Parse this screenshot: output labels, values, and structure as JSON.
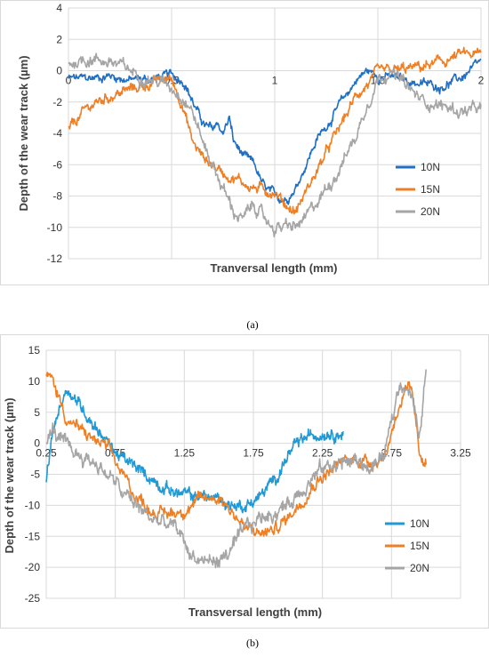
{
  "chart_data": [
    {
      "type": "line",
      "panel_label": "(a)",
      "xlabel": "Tranversal length (mm)",
      "ylabel": "Depth of the wear track (µm)",
      "xlim": [
        0,
        2
      ],
      "ylim": [
        -12,
        4
      ],
      "x_ticks": [
        0,
        0.5,
        1,
        1.5,
        2
      ],
      "x_tick_labels": [
        "0",
        "0.5",
        "1",
        "1.5",
        "2"
      ],
      "y_ticks": [
        4,
        2,
        0,
        -2,
        -4,
        -6,
        -8,
        -10,
        -12
      ],
      "y_tick_labels": [
        "4",
        "2",
        "0",
        "-2",
        "-4",
        "-6",
        "-8",
        "-10",
        "-12"
      ],
      "legend_position": "right",
      "grid": true,
      "series": [
        {
          "name": "10N",
          "color": "#1f6fc5",
          "noise": 0.25,
          "x": [
            0,
            0.1,
            0.2,
            0.3,
            0.4,
            0.5,
            0.56,
            0.62,
            0.66,
            0.7,
            0.72,
            0.75,
            0.78,
            0.8,
            0.85,
            0.9,
            0.95,
            1.0,
            1.05,
            1.1,
            1.15,
            1.2,
            1.3,
            1.4,
            1.45,
            1.5,
            1.6,
            1.7,
            1.8,
            1.9,
            2.0
          ],
          "y": [
            -0.5,
            -0.5,
            -0.3,
            -0.6,
            -0.5,
            -0.3,
            -0.6,
            -2.5,
            -3.5,
            -3.8,
            -3.3,
            -4.0,
            -3.0,
            -4.5,
            -5.5,
            -6.0,
            -7.5,
            -8.0,
            -8.2,
            -7.5,
            -6.0,
            -4.5,
            -2.5,
            -0.5,
            0.0,
            -0.3,
            -0.5,
            -0.8,
            -1.0,
            -0.5,
            0.5
          ]
        },
        {
          "name": "15N",
          "color": "#f07f24",
          "noise": 0.3,
          "x": [
            0,
            0.05,
            0.1,
            0.2,
            0.3,
            0.4,
            0.5,
            0.55,
            0.6,
            0.65,
            0.7,
            0.75,
            0.8,
            0.9,
            1.0,
            1.05,
            1.1,
            1.2,
            1.3,
            1.4,
            1.5,
            1.6,
            1.7,
            1.8,
            1.9,
            2.0
          ],
          "y": [
            -3.8,
            -3.0,
            -2.3,
            -1.6,
            -1.2,
            -0.8,
            -0.5,
            -2.0,
            -4.5,
            -5.5,
            -6.0,
            -6.5,
            -6.8,
            -7.5,
            -7.7,
            -8.5,
            -9.0,
            -6.5,
            -4.0,
            -1.5,
            -0.2,
            0.0,
            0.2,
            0.5,
            1.0,
            1.0
          ]
        },
        {
          "name": "20N",
          "color": "#a5a5a5",
          "noise": 0.35,
          "x": [
            0,
            0.1,
            0.2,
            0.3,
            0.4,
            0.5,
            0.55,
            0.6,
            0.65,
            0.7,
            0.75,
            0.8,
            0.85,
            0.9,
            0.95,
            1.0,
            1.1,
            1.15,
            1.2,
            1.3,
            1.4,
            1.45,
            1.5,
            1.55,
            1.6,
            1.7,
            1.8,
            1.9,
            2.0
          ],
          "y": [
            0.5,
            0.8,
            0.6,
            0.0,
            -0.5,
            -1.0,
            -1.5,
            -2.5,
            -4.5,
            -6.0,
            -7.5,
            -9.0,
            -9.5,
            -8.5,
            -9.5,
            -10.0,
            -10.0,
            -9.5,
            -8.5,
            -6.5,
            -4.0,
            -2.0,
            -0.5,
            0.0,
            -0.5,
            -1.8,
            -2.2,
            -2.6,
            -2.5
          ]
        }
      ]
    },
    {
      "type": "line",
      "panel_label": "(b)",
      "xlabel": "Transversal length (mm)",
      "ylabel": "Depth of the wear track (µm)",
      "xlim": [
        0.25,
        3.25
      ],
      "ylim": [
        -25,
        15
      ],
      "x_ticks": [
        0.25,
        0.75,
        1.25,
        1.75,
        2.25,
        2.75,
        3.25
      ],
      "x_tick_labels": [
        "0.25",
        "0.75",
        "1.25",
        "1.75",
        "2.25",
        "2.75",
        "3.25"
      ],
      "y_ticks": [
        15,
        10,
        5,
        0,
        -5,
        -10,
        -15,
        -20,
        -25
      ],
      "y_tick_labels": [
        "15",
        "10",
        "5",
        "0",
        "-5",
        "-10",
        "-15",
        "-20",
        "-25"
      ],
      "legend_position": "right",
      "grid": true,
      "series": [
        {
          "name": "10N",
          "color": "#1f9ad6",
          "noise": 0.8,
          "x": [
            0.25,
            0.3,
            0.35,
            0.4,
            0.5,
            0.6,
            0.7,
            0.8,
            0.9,
            1.0,
            1.1,
            1.2,
            1.3,
            1.4,
            1.5,
            1.6,
            1.7,
            1.8,
            1.9,
            2.0,
            2.1,
            2.2,
            2.3,
            2.4
          ],
          "y": [
            -6.0,
            2.0,
            6.0,
            9.0,
            6.0,
            3.0,
            0.0,
            -2.5,
            -4.0,
            -5.5,
            -7.0,
            -8.0,
            -8.5,
            -8.5,
            -9.0,
            -10.0,
            -10.0,
            -8.5,
            -6.0,
            -2.0,
            0.5,
            1.5,
            2.0,
            1.5
          ]
        },
        {
          "name": "15N",
          "color": "#f07f24",
          "noise": 0.9,
          "x": [
            0.25,
            0.3,
            0.4,
            0.5,
            0.6,
            0.7,
            0.8,
            0.9,
            1.0,
            1.1,
            1.2,
            1.3,
            1.4,
            1.5,
            1.6,
            1.7,
            1.8,
            1.9,
            2.0,
            2.1,
            2.2,
            2.3,
            2.4,
            2.5,
            2.6,
            2.7,
            2.72,
            2.75,
            2.8,
            2.85,
            2.9,
            2.95,
            3.0
          ],
          "y": [
            11.0,
            10.0,
            4.0,
            2.0,
            0.5,
            -1.0,
            -5.0,
            -8.5,
            -10.5,
            -11.5,
            -11.0,
            -10.0,
            -9.0,
            -8.5,
            -11.0,
            -14.0,
            -14.5,
            -14.0,
            -12.0,
            -9.0,
            -6.0,
            -4.5,
            -3.0,
            -2.5,
            -3.0,
            -2.0,
            -1.0,
            2.0,
            6.0,
            8.0,
            8.0,
            -2.0,
            -2.5
          ]
        },
        {
          "name": "20N",
          "color": "#a5a5a5",
          "noise": 1.1,
          "x": [
            0.25,
            0.3,
            0.4,
            0.5,
            0.6,
            0.7,
            0.8,
            0.9,
            1.0,
            1.1,
            1.2,
            1.3,
            1.4,
            1.5,
            1.6,
            1.7,
            1.8,
            1.9,
            2.0,
            2.1,
            2.2,
            2.3,
            2.4,
            2.5,
            2.6,
            2.7,
            2.75,
            2.8,
            2.85,
            2.9,
            2.95,
            3.0
          ],
          "y": [
            0.0,
            2.0,
            -1.0,
            -2.0,
            -3.0,
            -5.0,
            -8.0,
            -10.0,
            -12.0,
            -13.0,
            -14.0,
            -18.0,
            -19.0,
            -19.0,
            -17.0,
            -14.0,
            -12.0,
            -11.0,
            -10.0,
            -7.0,
            -5.0,
            -3.5,
            -3.0,
            -3.0,
            -4.0,
            -2.0,
            3.0,
            9.0,
            10.0,
            8.0,
            0.0,
            12.0
          ]
        }
      ]
    }
  ]
}
